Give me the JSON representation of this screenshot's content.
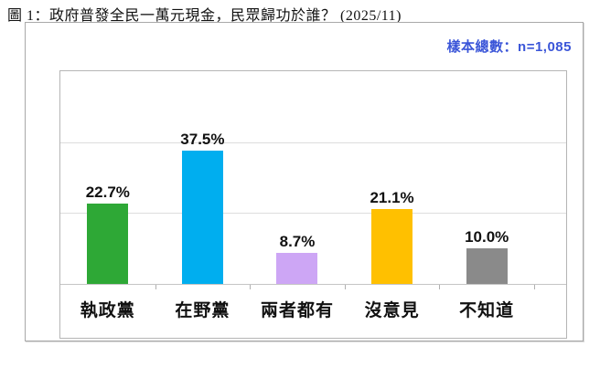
{
  "title": "圖 1：政府普發全民一萬元現金，民眾歸功於誰？ (2025/11)",
  "sample_note": "樣本總數：n=1,085",
  "accent_color": "#3a55d8",
  "chart_data": {
    "type": "bar",
    "title": "圖 1：政府普發全民一萬元現金，民眾歸功於誰？ (2025/11)",
    "subtitle": "樣本總數：n=1,085",
    "categories": [
      "執政黨",
      "在野黨",
      "兩者都有",
      "沒意見",
      "不知道"
    ],
    "values": [
      22.7,
      37.5,
      8.7,
      21.1,
      10.0
    ],
    "value_labels": [
      "22.7%",
      "37.5%",
      "8.7%",
      "21.1%",
      "10.0%"
    ],
    "bar_colors": [
      "#2ea836",
      "#00aeef",
      "#cda6f5",
      "#ffc000",
      "#8a8a8a"
    ],
    "xlabel": "",
    "ylabel": "",
    "ylim": [
      0,
      60
    ],
    "gridlines_percent": [
      20,
      40
    ],
    "grid": "horizontal",
    "legend_position": "none",
    "axis_ticks": "between-categories"
  }
}
